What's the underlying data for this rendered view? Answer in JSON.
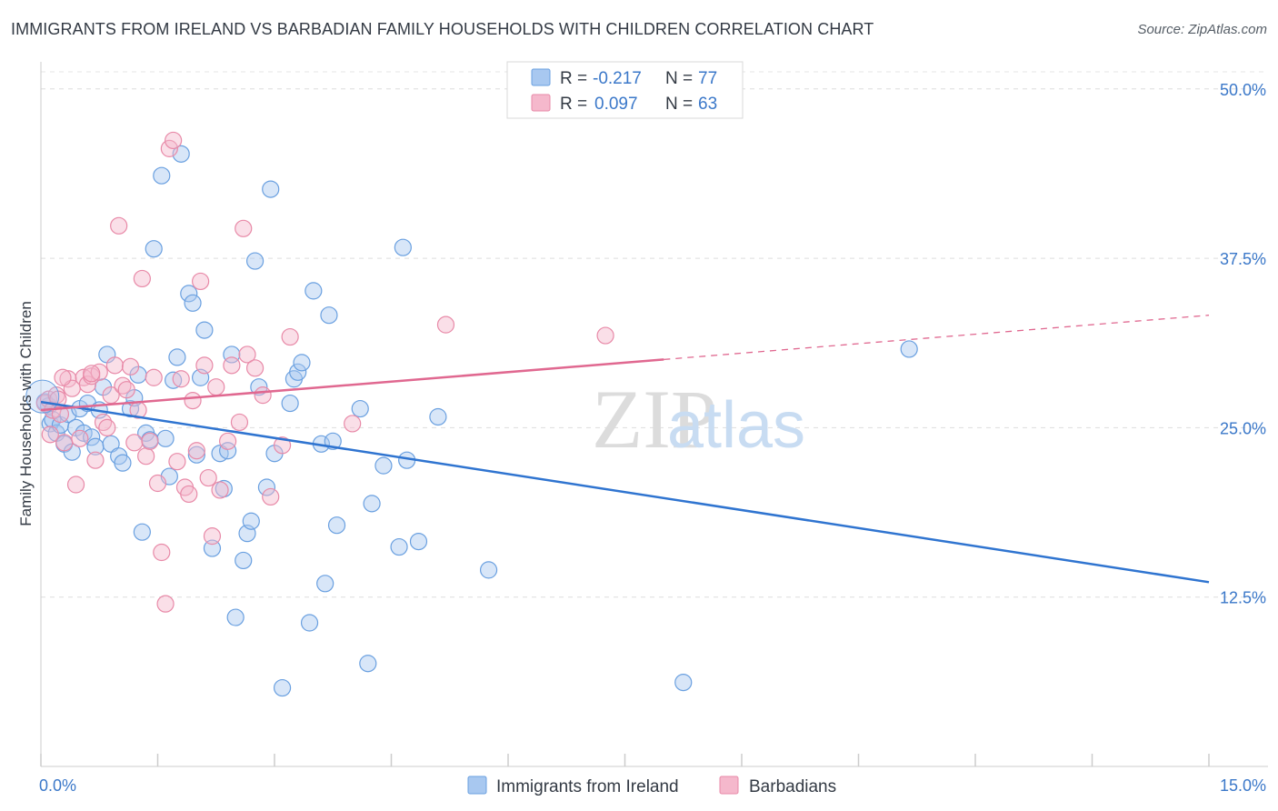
{
  "title": "IMMIGRANTS FROM IRELAND VS BARBADIAN FAMILY HOUSEHOLDS WITH CHILDREN CORRELATION CHART",
  "source": "Source: ZipAtlas.com",
  "watermark": {
    "zip": "ZIP",
    "atlas": "atlas"
  },
  "chart_data": {
    "type": "scatter",
    "title": "IMMIGRANTS FROM IRELAND VS BARBADIAN FAMILY HOUSEHOLDS WITH CHILDREN CORRELATION CHART",
    "xlabel": "",
    "ylabel": "Family Households with Children",
    "xlim": [
      0,
      15
    ],
    "ylim": [
      0,
      52
    ],
    "x_tick_labels": [
      "0.0%",
      "15.0%"
    ],
    "y_ticks": [
      12.5,
      25.0,
      37.5,
      50.0
    ],
    "y_tick_labels": [
      "12.5%",
      "25.0%",
      "37.5%",
      "50.0%"
    ],
    "grid": true,
    "legend": [
      {
        "r_label": "R =",
        "r_value": "-0.217",
        "n_label": "N =",
        "n_value": "77",
        "color": "#a8c8f0"
      },
      {
        "r_label": "R =",
        "r_value": "0.097",
        "n_label": "N =",
        "n_value": "63",
        "color": "#f5b8cc"
      }
    ],
    "series": [
      {
        "name": "Immigrants from Ireland",
        "color": "#6aa0e0",
        "fill": "#a8c8f0",
        "trend_color": "#2f74d0",
        "trend": {
          "x0": 0,
          "y0": 26.9,
          "x1": 15,
          "y1": 13.6,
          "solid_until": 15
        },
        "points": [
          [
            0.05,
            26.9
          ],
          [
            0.1,
            26.6
          ],
          [
            0.12,
            25.3
          ],
          [
            0.15,
            25.6
          ],
          [
            0.2,
            24.6
          ],
          [
            0.25,
            25.2
          ],
          [
            0.3,
            23.8
          ],
          [
            0.35,
            26.0
          ],
          [
            0.4,
            23.2
          ],
          [
            0.45,
            25.0
          ],
          [
            0.5,
            26.4
          ],
          [
            0.55,
            24.6
          ],
          [
            0.6,
            26.8
          ],
          [
            0.65,
            24.3
          ],
          [
            0.7,
            23.6
          ],
          [
            0.75,
            26.3
          ],
          [
            0.8,
            28.0
          ],
          [
            0.85,
            30.4
          ],
          [
            0.9,
            23.8
          ],
          [
            1.0,
            22.9
          ],
          [
            1.05,
            22.4
          ],
          [
            1.15,
            26.4
          ],
          [
            1.2,
            27.2
          ],
          [
            1.25,
            28.9
          ],
          [
            1.35,
            24.6
          ],
          [
            1.4,
            24.1
          ],
          [
            1.45,
            38.2
          ],
          [
            1.55,
            43.6
          ],
          [
            1.6,
            24.2
          ],
          [
            1.65,
            21.4
          ],
          [
            1.7,
            28.5
          ],
          [
            1.75,
            30.2
          ],
          [
            1.8,
            45.2
          ],
          [
            1.9,
            34.9
          ],
          [
            1.95,
            34.2
          ],
          [
            2.0,
            23.0
          ],
          [
            2.05,
            28.7
          ],
          [
            2.1,
            32.2
          ],
          [
            2.2,
            16.1
          ],
          [
            2.3,
            23.1
          ],
          [
            2.35,
            20.5
          ],
          [
            2.4,
            23.3
          ],
          [
            2.45,
            30.4
          ],
          [
            2.5,
            11.0
          ],
          [
            2.6,
            15.2
          ],
          [
            2.65,
            17.2
          ],
          [
            2.7,
            18.1
          ],
          [
            2.75,
            37.3
          ],
          [
            2.8,
            28.0
          ],
          [
            2.9,
            20.6
          ],
          [
            2.95,
            42.6
          ],
          [
            3.0,
            23.1
          ],
          [
            3.1,
            5.8
          ],
          [
            3.2,
            26.8
          ],
          [
            3.25,
            28.6
          ],
          [
            3.3,
            29.1
          ],
          [
            3.35,
            29.8
          ],
          [
            3.45,
            10.6
          ],
          [
            3.5,
            35.1
          ],
          [
            3.6,
            23.8
          ],
          [
            3.65,
            13.5
          ],
          [
            3.7,
            33.3
          ],
          [
            3.75,
            24.0
          ],
          [
            3.8,
            17.8
          ],
          [
            4.1,
            26.4
          ],
          [
            4.2,
            7.6
          ],
          [
            4.25,
            19.4
          ],
          [
            4.4,
            22.2
          ],
          [
            4.6,
            16.2
          ],
          [
            4.65,
            38.3
          ],
          [
            4.7,
            22.6
          ],
          [
            4.85,
            16.6
          ],
          [
            5.1,
            25.8
          ],
          [
            5.75,
            14.5
          ],
          [
            8.25,
            6.2
          ],
          [
            11.15,
            30.8
          ],
          [
            1.3,
            17.3
          ]
        ]
      },
      {
        "name": "Barbadians",
        "color": "#e88aa8",
        "fill": "#f5b8cc",
        "trend_color": "#e06890",
        "trend": {
          "x0": 0,
          "y0": 26.3,
          "x1": 15,
          "y1": 33.3,
          "solid_until": 8.0
        },
        "points": [
          [
            0.05,
            26.8
          ],
          [
            0.1,
            27.1
          ],
          [
            0.15,
            26.3
          ],
          [
            0.2,
            27.4
          ],
          [
            0.25,
            26.0
          ],
          [
            0.3,
            23.9
          ],
          [
            0.35,
            28.6
          ],
          [
            0.4,
            27.9
          ],
          [
            0.45,
            20.8
          ],
          [
            0.5,
            24.2
          ],
          [
            0.55,
            28.7
          ],
          [
            0.6,
            28.2
          ],
          [
            0.65,
            28.8
          ],
          [
            0.7,
            22.6
          ],
          [
            0.75,
            29.1
          ],
          [
            0.8,
            25.4
          ],
          [
            0.85,
            25.0
          ],
          [
            0.9,
            27.4
          ],
          [
            0.95,
            29.6
          ],
          [
            1.0,
            39.9
          ],
          [
            1.05,
            28.1
          ],
          [
            1.1,
            27.8
          ],
          [
            1.15,
            29.5
          ],
          [
            1.2,
            23.9
          ],
          [
            1.25,
            26.3
          ],
          [
            1.3,
            36.0
          ],
          [
            1.35,
            22.9
          ],
          [
            1.4,
            24.0
          ],
          [
            1.45,
            28.7
          ],
          [
            1.5,
            20.9
          ],
          [
            1.55,
            15.8
          ],
          [
            1.6,
            12.0
          ],
          [
            1.65,
            45.6
          ],
          [
            1.7,
            46.2
          ],
          [
            1.75,
            22.5
          ],
          [
            1.8,
            28.6
          ],
          [
            1.85,
            20.6
          ],
          [
            1.9,
            20.1
          ],
          [
            1.95,
            27.0
          ],
          [
            2.0,
            23.3
          ],
          [
            2.05,
            35.8
          ],
          [
            2.1,
            29.6
          ],
          [
            2.15,
            21.3
          ],
          [
            2.2,
            17.0
          ],
          [
            2.25,
            28.0
          ],
          [
            2.3,
            20.4
          ],
          [
            2.4,
            24.0
          ],
          [
            2.45,
            29.6
          ],
          [
            2.55,
            25.4
          ],
          [
            2.6,
            39.7
          ],
          [
            2.65,
            30.4
          ],
          [
            2.75,
            29.4
          ],
          [
            2.85,
            27.4
          ],
          [
            2.95,
            19.9
          ],
          [
            3.1,
            23.7
          ],
          [
            3.2,
            31.7
          ],
          [
            4.0,
            25.3
          ],
          [
            5.2,
            32.6
          ],
          [
            7.25,
            31.8
          ],
          [
            0.12,
            24.5
          ],
          [
            0.22,
            27.1
          ],
          [
            0.28,
            28.7
          ],
          [
            0.65,
            29.0
          ]
        ]
      }
    ]
  }
}
